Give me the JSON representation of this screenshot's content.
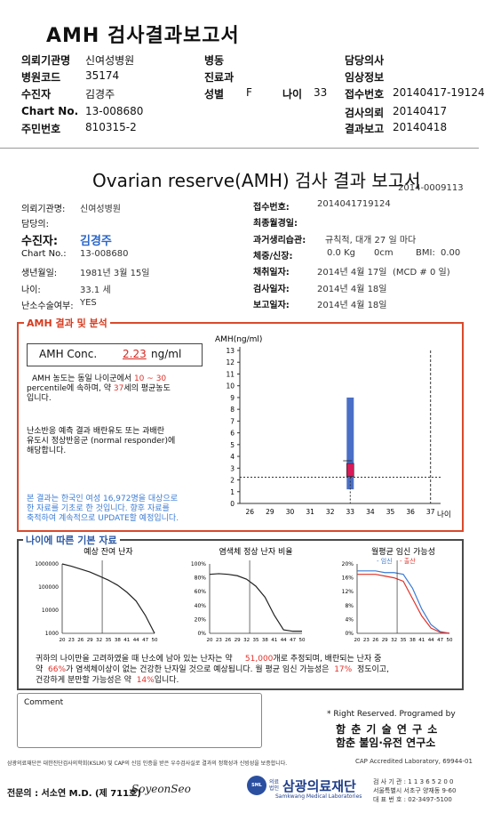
{
  "summary": {
    "title": "AMH 검사결과보고서",
    "rows": [
      {
        "l1": "의뢰기관명",
        "v1": "신여성병원",
        "l2": "병동",
        "v2": "",
        "l3": "담당의사",
        "v3": ""
      },
      {
        "l1": "병원코드",
        "v1": "35174",
        "l2": "진료과",
        "v2": "",
        "l3": "임상정보",
        "v3": ""
      },
      {
        "l1": "수진자",
        "v1": "김경주",
        "l2": "성별",
        "v2": "F",
        "l2b": "나이",
        "v2b": "33",
        "l3": "접수번호",
        "v3": "20140417-19124"
      },
      {
        "l1": "Chart No.",
        "v1": "13-008680",
        "l2": "",
        "v2": "",
        "l3": "검사의뢰",
        "v3": "20140417"
      },
      {
        "l1": "주민번호",
        "v1": "810315-2",
        "l2": "",
        "v2": "",
        "l3": "결과보고",
        "v3": "20140418"
      }
    ]
  },
  "report": {
    "title": "Ovarian reserve(AMH) 검사 결과 보고서",
    "number": "2014-0009113",
    "left": {
      "institution_label": "의뢰기관명:",
      "institution": "신여성병원",
      "doctor_label": "담당의:",
      "patient_label": "수진자:",
      "patient": "김경주",
      "chart_label": "Chart No.:",
      "chart": "13-008680",
      "dob_label": "생년월일:",
      "dob": "1981년 3월 15일",
      "age_label": "나이:",
      "age": "33.1 세",
      "surgery_label": "난소수술여부:",
      "surgery": "YES"
    },
    "right": {
      "receipt_label": "접수번호:",
      "receipt": "2014041719124",
      "lmp_label": "최종월경일:",
      "history_label": "과거생리습관:",
      "history": "규칙적, 대개   27 일 마다",
      "weight_label": "체중/신장:",
      "weight": "0.0 Kg",
      "height": "0cm",
      "bmi_label": "BMI:",
      "bmi": "0.00",
      "collect_label": "채취일자:",
      "collect": "2014년 4월 17일",
      "mcd": "(MCD # 0 일)",
      "test_label": "검사일자:",
      "test": "2014년 4월 18일",
      "report_label": "보고일자:",
      "report_date": "2014년 4월 18일"
    }
  },
  "amh": {
    "box_title": "AMH 결과 및 분석",
    "conc_label": "AMH Conc.",
    "conc_value": "2.23",
    "conc_unit": "ng/ml",
    "p1a": "AMH 농도는 동일 나이군에서",
    "p1_low": "10",
    "p1_tilde": "~",
    "p1_high": "30",
    "p1b": "percentile에 속하며, 약",
    "p1_age": "37",
    "p1c": "세의 평균농도",
    "p1d": "입니다.",
    "p2a": "난소반응 예측 결과 배란유도 또는 과배란",
    "p2b": "유도시 정상반응군 (normal responder)에",
    "p2c": "해당합니다.",
    "note1": "본 결과는 한국인 여성 16,972명을 대상으로",
    "note2": "한 자료를 기초로 한 것입니다. 향후 자료를",
    "note3": "축적하여 계속적으로 UPDATE할 예정입니다."
  },
  "chart_data": [
    {
      "type": "box",
      "title": "",
      "ylabel": "AMH(ng/ml)",
      "xlabel": "나이",
      "ylim": [
        0,
        13
      ],
      "yticks": [
        0,
        1,
        2,
        3,
        4,
        5,
        6,
        7,
        8,
        9,
        10,
        11,
        12,
        13
      ],
      "xticks": [
        26,
        29,
        30,
        31,
        32,
        33,
        34,
        35,
        36,
        37
      ],
      "box": {
        "x": 33,
        "whisker_low": 1.2,
        "q1": 2.3,
        "q3": 3.4,
        "whisker_high": 9.0
      },
      "patient": {
        "age": 33,
        "value": 2.23
      },
      "reference_age_line": 37
    },
    {
      "type": "line",
      "title": "예상 잔여 난자",
      "yticks": [
        "1000000",
        "100000",
        "10000",
        "1000"
      ],
      "x": [
        20,
        23,
        26,
        29,
        32,
        35,
        38,
        41,
        44,
        47,
        50
      ],
      "xticks": [
        "20",
        "23",
        "26",
        "29",
        "32",
        "35",
        "38",
        "41",
        "44",
        "47",
        "50"
      ],
      "yscale": "log",
      "values": [
        1000000,
        800000,
        600000,
        450000,
        300000,
        200000,
        120000,
        60000,
        25000,
        6000,
        1000
      ],
      "patient_age": 33
    },
    {
      "type": "line",
      "title": "염색체 정상 난자 비율",
      "yticks": [
        "100%",
        "80%",
        "60%",
        "40%",
        "20%",
        "0%"
      ],
      "x": [
        20,
        23,
        26,
        29,
        32,
        35,
        38,
        41,
        44,
        47,
        50
      ],
      "xticks": [
        "20",
        "23",
        "26",
        "29",
        "32",
        "35",
        "38",
        "41",
        "44",
        "47",
        "50"
      ],
      "values": [
        85,
        86,
        85,
        83,
        78,
        68,
        52,
        26,
        5,
        3,
        3
      ],
      "patient_age": 33
    },
    {
      "type": "line",
      "title": "월평균 임신 가능성",
      "legend": [
        {
          "name": "임신",
          "color": "#3b7bd4"
        },
        {
          "name": "출산",
          "color": "#e0322a"
        }
      ],
      "yticks": [
        "20%",
        "16%",
        "12%",
        "8%",
        "4%",
        "0%"
      ],
      "x": [
        20,
        23,
        26,
        29,
        32,
        35,
        38,
        41,
        44,
        47,
        50
      ],
      "xticks": [
        "20",
        "23",
        "26",
        "29",
        "32",
        "35",
        "38",
        "41",
        "44",
        "47",
        "50"
      ],
      "series": [
        {
          "name": "임신",
          "values": [
            18,
            18,
            18,
            17.5,
            17.5,
            17,
            13,
            7,
            2.5,
            0.5,
            0
          ]
        },
        {
          "name": "출산",
          "values": [
            17,
            17,
            17,
            16.5,
            16,
            15,
            10,
            5,
            1.5,
            0.3,
            0
          ]
        }
      ],
      "patient_age": 33
    }
  ],
  "summary_text": {
    "l1a": "귀하의 나이만을 고려하였을 때 난소에 남아 있는 난자는 약",
    "l1_num": "51,000",
    "l1b": "개로 추정되며, 배란되는 난자 중",
    "l2a": "약",
    "l2_pct": "66%",
    "l2b": "가 염색체이상이 없는 건강한 난자일 것으로 예상됩니다. 월 평균 임신 가능성은",
    "l2_pct2": "17%",
    "l2c": "정도이고,",
    "l3a": "건강하게 분만할 가능성은 약",
    "l3_pct": "14%",
    "l3b": "입니다."
  },
  "comment_label": "Comment",
  "rights": "* Right Reserved. Programed by",
  "org1": "함 춘  기 술  연 구 소",
  "org2": "함춘 불임·유전 연구소",
  "footer": {
    "disclaimer": "삼광의료재단은 대한진단검사의학회(KSLM) 및 CAP의 신임 인증을 받은 우수검사실로 결과의 정확성과 신빙성을 보증합니다.",
    "cap": "CAP Accredited Laboratory, 69944-01",
    "doctor": "전문의 : 서소연 M.D. (제 711호)",
    "signature": "SoyeonSeo",
    "logo_badge": "SML",
    "logo_pre1": "의료",
    "logo_pre2": "법인",
    "logo_name": "삼광의료재단",
    "logo_en": "Samkwang Medical Laboratories",
    "contact1": "검 사 기 관 : 1 1 3 6 5 2 0 0",
    "contact2": "서울특별시 서초구 양재동 9-60",
    "contact3": "대 표 번 호 : 02-3497-5100"
  }
}
